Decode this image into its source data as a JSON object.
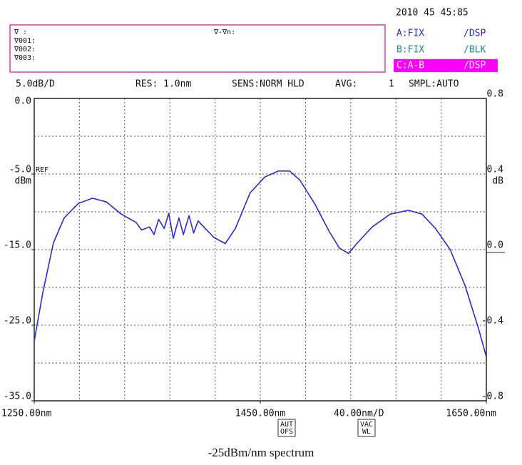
{
  "header": {
    "datetime": "2010  45 45:85",
    "markers": [
      "∇   :",
      "∇001:",
      "∇002:",
      "∇003:"
    ],
    "marker_diff": "∇-∇n:",
    "traces": [
      {
        "name": "A:FIX",
        "mode": "/DSP"
      },
      {
        "name": "B:FIX",
        "mode": "/BLK"
      },
      {
        "name": "C:A-B",
        "mode": "/DSP"
      }
    ],
    "status": [
      "5.0dB/D",
      "RES: 1.0nm",
      "SENS:NORM HLD",
      "AVG:",
      "1",
      "SMPL:AUTO"
    ]
  },
  "chart_data": {
    "type": "line",
    "color": "#2a2ad0",
    "x": [
      1250,
      1257.6,
      1267,
      1276.5,
      1289,
      1301.6,
      1314,
      1327,
      1340,
      1345,
      1352,
      1356,
      1360,
      1365,
      1369,
      1373,
      1378,
      1382,
      1387,
      1391,
      1395,
      1400,
      1409,
      1419,
      1428,
      1441,
      1454,
      1466,
      1476,
      1485,
      1498,
      1511,
      1520,
      1528,
      1536,
      1549,
      1565,
      1581,
      1593,
      1605,
      1618,
      1631,
      1643,
      1650
    ],
    "values": [
      -27.1,
      -20.7,
      -14.1,
      -10.8,
      -8.9,
      -8.2,
      -8.7,
      -10.3,
      -11.4,
      -12.4,
      -12.0,
      -13.0,
      -11.0,
      -12.2,
      -10.2,
      -13.5,
      -10.8,
      -13.0,
      -10.5,
      -12.8,
      -11.2,
      -12.0,
      -13.4,
      -14.2,
      -12.2,
      -7.5,
      -5.4,
      -4.6,
      -4.6,
      -5.8,
      -8.9,
      -12.6,
      -14.8,
      -15.5,
      -14.1,
      -12.0,
      -10.3,
      -9.8,
      -10.3,
      -12.2,
      -15.0,
      -19.7,
      -25.4,
      -29.2
    ],
    "xlim": [
      1250,
      1650
    ],
    "xticks": [
      {
        "value": 1250,
        "label": "1250.00nm"
      },
      {
        "value": 1450,
        "label": "1450.00nm"
      },
      {
        "value": 1650,
        "label": "1650.00nm"
      }
    ],
    "xgrid": [
      1290,
      1330,
      1370,
      1410,
      1450,
      1490,
      1530,
      1570,
      1610
    ],
    "ylim": [
      -35,
      5
    ],
    "ytop_label": "0.0",
    "yticks": [
      {
        "value": -5,
        "label": "-5.0"
      },
      {
        "value": -15,
        "label": "-15.0"
      },
      {
        "value": -25,
        "label": "-25.0"
      },
      {
        "value": -35,
        "label": "-35.0"
      }
    ],
    "ygrid": [
      0,
      -5,
      -10,
      -15,
      -20,
      -25,
      -30
    ],
    "ylabel": "dBm",
    "ref_label": "REF",
    "y2lim": [
      -0.8,
      0.8
    ],
    "y2ticks": [
      {
        "value": 0.8,
        "label": "0.8"
      },
      {
        "value": 0.4,
        "label": "0.4"
      },
      {
        "value": 0,
        "label": "0.0"
      },
      {
        "value": -0.4,
        "label": "-0.4"
      },
      {
        "value": -0.8,
        "label": "-0.8"
      }
    ],
    "y2label": "dB",
    "grid": true
  },
  "footer": {
    "span": "40.00nm/D",
    "buttons": [
      [
        "AUT",
        "OFS"
      ],
      [
        "VAC",
        "WL"
      ]
    ],
    "caption": "-25dBm/nm spectrum"
  }
}
